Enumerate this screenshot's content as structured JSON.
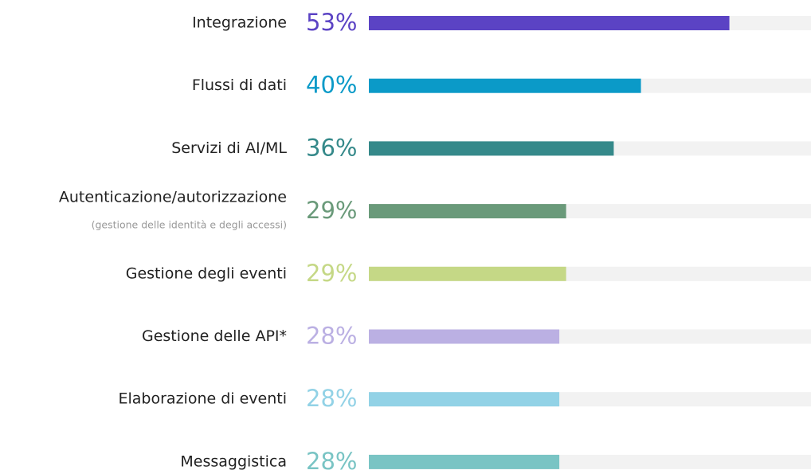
{
  "chart_data": {
    "type": "bar",
    "orientation": "horizontal",
    "categories": [
      "Integrazione",
      "Flussi di dati",
      "Servizi di AI/ML",
      "Autenticazione/autorizzazione",
      "Gestione degli eventi",
      "Gestione delle API*",
      "Elaborazione di eventi",
      "Messaggistica"
    ],
    "annotation": "(gestione delle identità e degli accessi)",
    "values": [
      53,
      40,
      36,
      29,
      29,
      28,
      28,
      28
    ],
    "value_labels": [
      "53%",
      "40%",
      "36%",
      "29%",
      "29%",
      "28%",
      "28%",
      "28%"
    ],
    "colors": [
      "#5b43c4",
      "#0b9ac8",
      "#35898a",
      "#6a9a7a",
      "#c5d886",
      "#bbb0e3",
      "#92d2e6",
      "#79c4c4"
    ],
    "xlim": [
      0,
      65
    ]
  }
}
